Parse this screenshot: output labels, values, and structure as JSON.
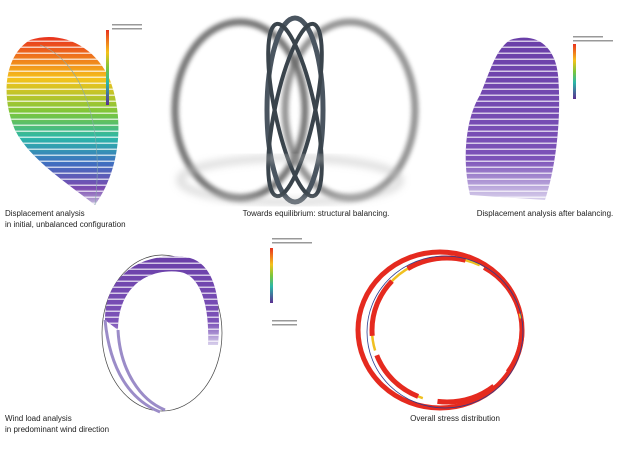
{
  "panels": [
    {
      "caption": [
        "Displacement analysis",
        "in initial, unbalanced configuration"
      ]
    },
    {
      "caption": [
        "Towards equilibrium: structural balancing."
      ]
    },
    {
      "caption": [
        "Displacement analysis after balancing."
      ]
    },
    {
      "caption": [
        "Wind load analysis",
        "in predominant wind direction"
      ]
    },
    {
      "caption": [
        "Overall stress distribution"
      ]
    }
  ]
}
